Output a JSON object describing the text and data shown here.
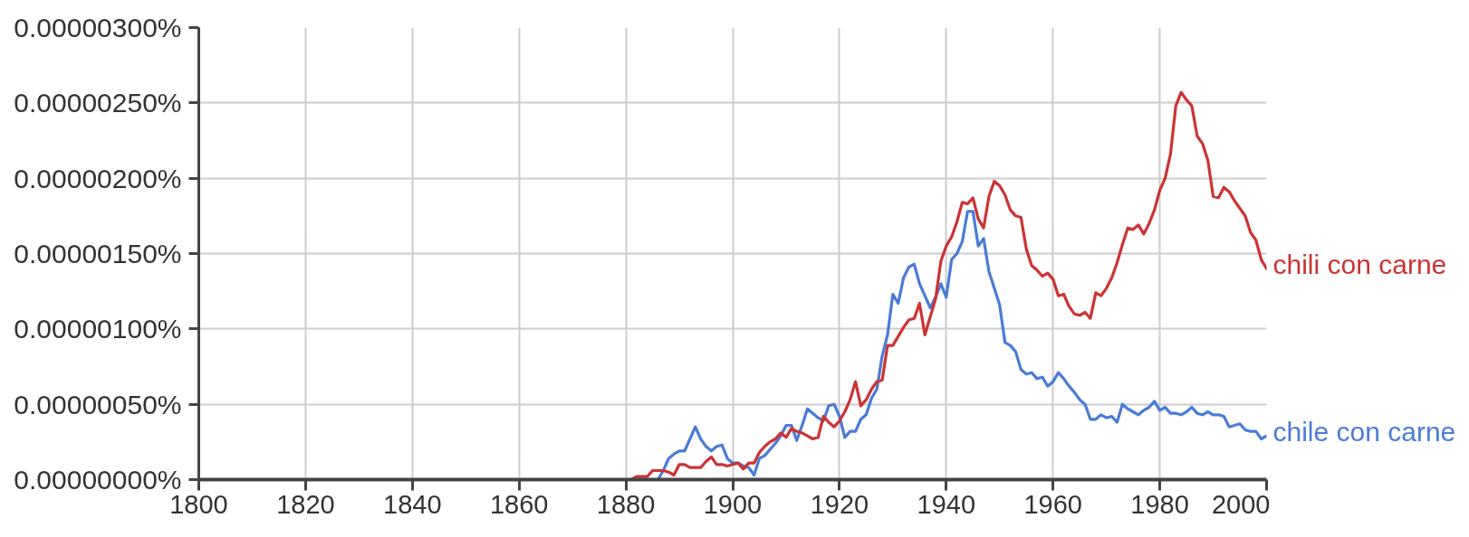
{
  "chart_data": {
    "type": "line",
    "xlim": [
      1800,
      2000
    ],
    "ylim": [
      0,
      3e-06
    ],
    "xticks": [
      1800,
      1820,
      1840,
      1860,
      1880,
      1900,
      1920,
      1940,
      1960,
      1980,
      2000
    ],
    "yticks": [
      {
        "value": 0,
        "label": "0.00000000%"
      },
      {
        "value": 5e-07,
        "label": "0.00000050%"
      },
      {
        "value": 1e-06,
        "label": "0.00000100%"
      },
      {
        "value": 1.5e-06,
        "label": "0.00000150%"
      },
      {
        "value": 2e-06,
        "label": "0.00000200%"
      },
      {
        "value": 2.5e-06,
        "label": "0.00000250%"
      },
      {
        "value": 3e-06,
        "label": "0.00000300%"
      }
    ],
    "grid": true,
    "line_style": "solid",
    "series": [
      {
        "name": "chile con carne",
        "color": "#4a7bd8",
        "x": [
          1885,
          1886,
          1887,
          1888,
          1889,
          1890,
          1891,
          1892,
          1893,
          1894,
          1895,
          1896,
          1897,
          1898,
          1899,
          1900,
          1901,
          1902,
          1903,
          1904,
          1905,
          1906,
          1907,
          1908,
          1909,
          1910,
          1911,
          1912,
          1913,
          1914,
          1915,
          1916,
          1917,
          1918,
          1919,
          1920,
          1921,
          1922,
          1923,
          1924,
          1925,
          1926,
          1927,
          1928,
          1929,
          1930,
          1931,
          1932,
          1933,
          1934,
          1935,
          1936,
          1937,
          1938,
          1939,
          1940,
          1941,
          1942,
          1943,
          1944,
          1945,
          1946,
          1947,
          1948,
          1949,
          1950,
          1951,
          1952,
          1953,
          1954,
          1955,
          1956,
          1957,
          1958,
          1959,
          1960,
          1961,
          1962,
          1963,
          1964,
          1965,
          1966,
          1967,
          1968,
          1969,
          1970,
          1971,
          1972,
          1973,
          1974,
          1975,
          1976,
          1977,
          1978,
          1979,
          1980,
          1981,
          1982,
          1983,
          1984,
          1985,
          1986,
          1987,
          1988,
          1989,
          1990,
          1991,
          1992,
          1993,
          1994,
          1995,
          1996,
          1997,
          1998,
          1999,
          2000
        ],
        "values": [
          0,
          0,
          6e-08,
          1.4e-07,
          1.7e-07,
          1.9e-07,
          1.9e-07,
          2.7e-07,
          3.5e-07,
          2.7e-07,
          2.2e-07,
          1.9e-07,
          2.2e-07,
          2.3e-07,
          1.4e-07,
          1.1e-07,
          1.1e-07,
          9e-08,
          8e-08,
          3e-08,
          1.4e-07,
          1.6e-07,
          2e-07,
          2.4e-07,
          2.9e-07,
          3.6e-07,
          3.6e-07,
          2.6e-07,
          3.6e-07,
          4.7e-07,
          4.4e-07,
          4.1e-07,
          3.9e-07,
          4.9e-07,
          5e-07,
          4.2e-07,
          2.8e-07,
          3.2e-07,
          3.2e-07,
          4e-07,
          4.3e-07,
          5.4e-07,
          6e-07,
          8.2e-07,
          9.6e-07,
          1.23e-06,
          1.17e-06,
          1.34e-06,
          1.41e-06,
          1.43e-06,
          1.3e-06,
          1.22e-06,
          1.14e-06,
          1.21e-06,
          1.3e-06,
          1.21e-06,
          1.46e-06,
          1.5e-06,
          1.58e-06,
          1.78e-06,
          1.78e-06,
          1.55e-06,
          1.6e-06,
          1.38e-06,
          1.27e-06,
          1.16e-06,
          9.1e-07,
          8.9e-07,
          8.5e-07,
          7.3e-07,
          7e-07,
          7.1e-07,
          6.7e-07,
          6.8e-07,
          6.2e-07,
          6.5e-07,
          7.1e-07,
          6.7e-07,
          6.2e-07,
          5.8e-07,
          5.3e-07,
          5e-07,
          4e-07,
          4e-07,
          4.3e-07,
          4.1e-07,
          4.2e-07,
          3.8e-07,
          5e-07,
          4.7e-07,
          4.5e-07,
          4.3e-07,
          4.6e-07,
          4.8e-07,
          5.2e-07,
          4.6e-07,
          4.8e-07,
          4.4e-07,
          4.4e-07,
          4.3e-07,
          4.5e-07,
          4.8e-07,
          4.4e-07,
          4.3e-07,
          4.5e-07,
          4.3e-07,
          4.3e-07,
          4.2e-07,
          3.5e-07,
          3.6e-07,
          3.7e-07,
          3.3e-07,
          3.2e-07,
          3.2e-07,
          2.7e-07,
          2.9e-07
        ]
      },
      {
        "name": "chili con carne",
        "color": "#cc3333",
        "x": [
          1800,
          1881,
          1882,
          1883,
          1884,
          1885,
          1886,
          1887,
          1888,
          1889,
          1890,
          1891,
          1892,
          1893,
          1894,
          1895,
          1896,
          1897,
          1898,
          1899,
          1900,
          1901,
          1902,
          1903,
          1904,
          1905,
          1906,
          1907,
          1908,
          1909,
          1910,
          1911,
          1912,
          1913,
          1914,
          1915,
          1916,
          1917,
          1918,
          1919,
          1920,
          1921,
          1922,
          1923,
          1924,
          1925,
          1926,
          1927,
          1928,
          1929,
          1930,
          1931,
          1932,
          1933,
          1934,
          1935,
          1936,
          1937,
          1938,
          1939,
          1940,
          1941,
          1942,
          1943,
          1944,
          1945,
          1946,
          1947,
          1948,
          1949,
          1950,
          1951,
          1952,
          1953,
          1954,
          1955,
          1956,
          1957,
          1958,
          1959,
          1960,
          1961,
          1962,
          1963,
          1964,
          1965,
          1966,
          1967,
          1968,
          1969,
          1970,
          1971,
          1972,
          1973,
          1974,
          1975,
          1976,
          1977,
          1978,
          1979,
          1980,
          1981,
          1982,
          1983,
          1984,
          1985,
          1986,
          1987,
          1988,
          1989,
          1990,
          1991,
          1992,
          1993,
          1994,
          1995,
          1996,
          1997,
          1998,
          1999,
          2000
        ],
        "values": [
          0,
          0,
          2e-08,
          2e-08,
          2e-08,
          6e-08,
          6e-08,
          6e-08,
          5e-08,
          3e-08,
          1e-07,
          1e-07,
          8e-08,
          8e-08,
          8e-08,
          1.2e-07,
          1.5e-07,
          1e-07,
          1e-07,
          9e-08,
          1e-07,
          1.1e-07,
          7e-08,
          1.1e-07,
          1.1e-07,
          1.8e-07,
          2.2e-07,
          2.5e-07,
          2.7e-07,
          3.1e-07,
          2.8e-07,
          3.4e-07,
          3.2e-07,
          3.1e-07,
          2.9e-07,
          2.7e-07,
          2.8e-07,
          4.2e-07,
          3.8e-07,
          3.5e-07,
          3.9e-07,
          4.5e-07,
          5.3e-07,
          6.5e-07,
          4.9e-07,
          5.3e-07,
          6e-07,
          6.5e-07,
          6.6e-07,
          8.9e-07,
          8.9e-07,
          9.5e-07,
          1.01e-06,
          1.06e-06,
          1.07e-06,
          1.17e-06,
          9.6e-07,
          1.08e-06,
          1.2e-06,
          1.45e-06,
          1.55e-06,
          1.61e-06,
          1.71e-06,
          1.84e-06,
          1.83e-06,
          1.87e-06,
          1.73e-06,
          1.67e-06,
          1.88e-06,
          1.98e-06,
          1.95e-06,
          1.89e-06,
          1.79e-06,
          1.75e-06,
          1.74e-06,
          1.53e-06,
          1.42e-06,
          1.39e-06,
          1.35e-06,
          1.37e-06,
          1.33e-06,
          1.22e-06,
          1.23e-06,
          1.15e-06,
          1.1e-06,
          1.09e-06,
          1.11e-06,
          1.07e-06,
          1.24e-06,
          1.22e-06,
          1.27e-06,
          1.34e-06,
          1.44e-06,
          1.56e-06,
          1.67e-06,
          1.66e-06,
          1.69e-06,
          1.63e-06,
          1.7e-06,
          1.79e-06,
          1.92e-06,
          2e-06,
          2.16e-06,
          2.48e-06,
          2.57e-06,
          2.52e-06,
          2.48e-06,
          2.28e-06,
          2.23e-06,
          2.12e-06,
          1.88e-06,
          1.87e-06,
          1.94e-06,
          1.91e-06,
          1.85e-06,
          1.8e-06,
          1.75e-06,
          1.64e-06,
          1.59e-06,
          1.46e-06,
          1.4e-06
        ]
      }
    ]
  }
}
